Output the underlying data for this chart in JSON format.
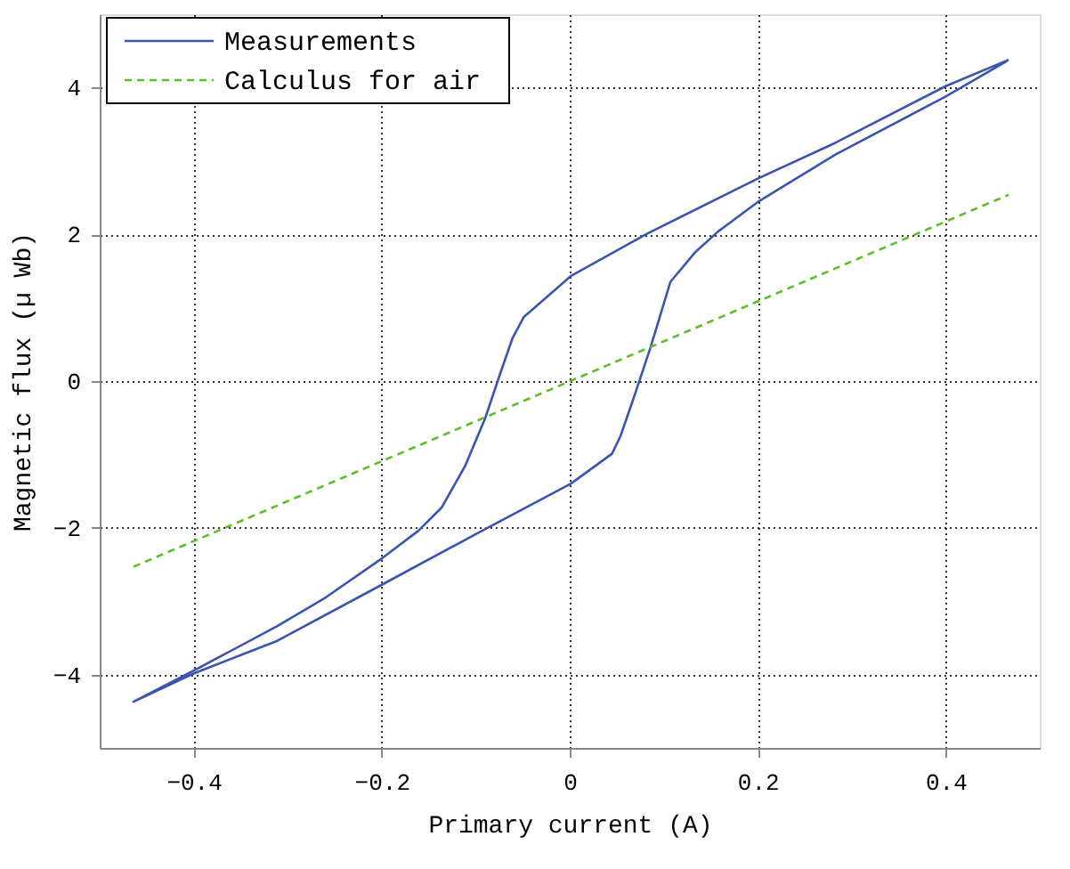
{
  "chart_data": {
    "type": "line",
    "xlabel": "Primary current (A)",
    "ylabel": "Magnetic flux (µ Wb)",
    "xlim": [
      -0.5,
      0.5
    ],
    "ylim": [
      -5,
      5
    ],
    "xticks": [
      -0.4,
      -0.2,
      0,
      0.2,
      0.4
    ],
    "yticks": [
      -4,
      -2,
      0,
      2,
      4
    ],
    "grid": true,
    "legend": "top left",
    "marker": "none",
    "series": [
      {
        "name": "Measurements",
        "color": "#3a55b0",
        "line_style": "solid",
        "x": [
          0.467,
          0.4,
          0.283,
          0.2,
          0.0825,
          0.001,
          -0.049,
          -0.061,
          -0.074,
          -0.09,
          -0.111,
          -0.136,
          -0.161,
          -0.199,
          -0.262,
          -0.311,
          -0.399,
          -0.464,
          -0.399,
          -0.311,
          -0.199,
          -0.099,
          0.001,
          0.045,
          0.054,
          0.067,
          0.086,
          0.107,
          0.133,
          0.158,
          0.2,
          0.283,
          0.4,
          0.465
        ],
        "values": [
          4.38,
          4.02,
          3.25,
          2.76,
          2.01,
          1.43,
          0.87,
          0.58,
          0.1,
          -0.51,
          -1.15,
          -1.72,
          -2.04,
          -2.41,
          -2.97,
          -3.34,
          -3.94,
          -4.37,
          -3.98,
          -3.54,
          -2.77,
          -2.08,
          -1.4,
          -0.99,
          -0.75,
          -0.27,
          0.46,
          1.35,
          1.75,
          2.04,
          2.44,
          3.09,
          3.88,
          4.36
        ]
      },
      {
        "name": "Calculus for air",
        "color": "#5cbf2a",
        "line_style": "dashed",
        "x": [
          -0.464,
          0.467
        ],
        "values": [
          -2.53,
          2.54
        ]
      }
    ]
  }
}
